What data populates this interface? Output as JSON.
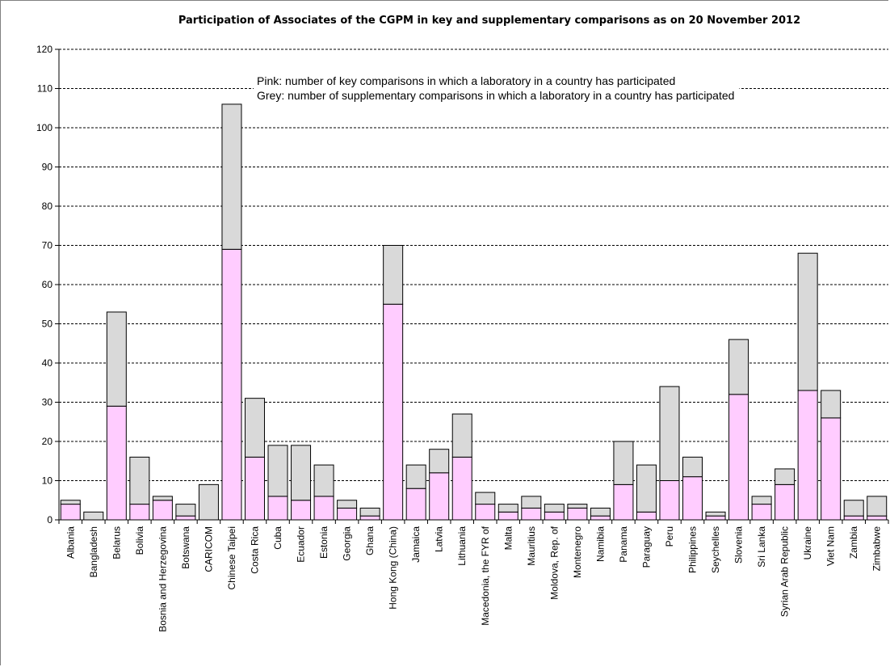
{
  "colors": {
    "key": "#ffccff",
    "supplementary": "#d9d9d9",
    "outline": "#000000",
    "grid": "#000000"
  },
  "chart_data": {
    "type": "bar",
    "stacked": true,
    "title": "Participation of Associates of the CGPM in key and supplementary comparisons as on 20 November 2012",
    "xlabel": "",
    "ylabel": "",
    "ylim": [
      0,
      120
    ],
    "ytick_step": 10,
    "grid": true,
    "legend": [
      "Pink: number of key comparisons in which a laboratory in a country has participated",
      "Grey: number of supplementary comparisons in which a laboratory in a country has participated"
    ],
    "categories": [
      "Albania",
      "Bangladesh",
      "Belarus",
      "Bolivia",
      "Bosnia and Herzegovina",
      "Botswana",
      "CARICOM",
      "Chinese Taipei",
      "Costa Rica",
      "Cuba",
      "Ecuador",
      "Estonia",
      "Georgia",
      "Ghana",
      "Hong Kong (China)",
      "Jamaica",
      "Latvia",
      "Lithuania",
      "Macedonia, the FYR of",
      "Malta",
      "Mauritius",
      "Moldova, Rep. of",
      "Montenegro",
      "Namibia",
      "Panama",
      "Paraguay",
      "Peru",
      "Philippines",
      "Seychelles",
      "Slovenia",
      "Sri Lanka",
      "Syrian Arab Republic",
      "Ukraine",
      "Viet Nam",
      "Zambia",
      "Zimbabwe"
    ],
    "series": [
      {
        "values": [
          4,
          0,
          29,
          4,
          5,
          1,
          0,
          69,
          16,
          6,
          5,
          6,
          3,
          1,
          55,
          8,
          12,
          16,
          4,
          2,
          3,
          2,
          3,
          1,
          9,
          2,
          10,
          11,
          1,
          32,
          4,
          9,
          33,
          26,
          1,
          1
        ]
      },
      {
        "values": [
          1,
          2,
          24,
          12,
          1,
          3,
          9,
          37,
          15,
          13,
          14,
          8,
          2,
          2,
          15,
          6,
          6,
          11,
          3,
          2,
          3,
          2,
          1,
          2,
          11,
          12,
          24,
          5,
          1,
          14,
          2,
          4,
          35,
          7,
          4,
          5
        ]
      }
    ]
  }
}
